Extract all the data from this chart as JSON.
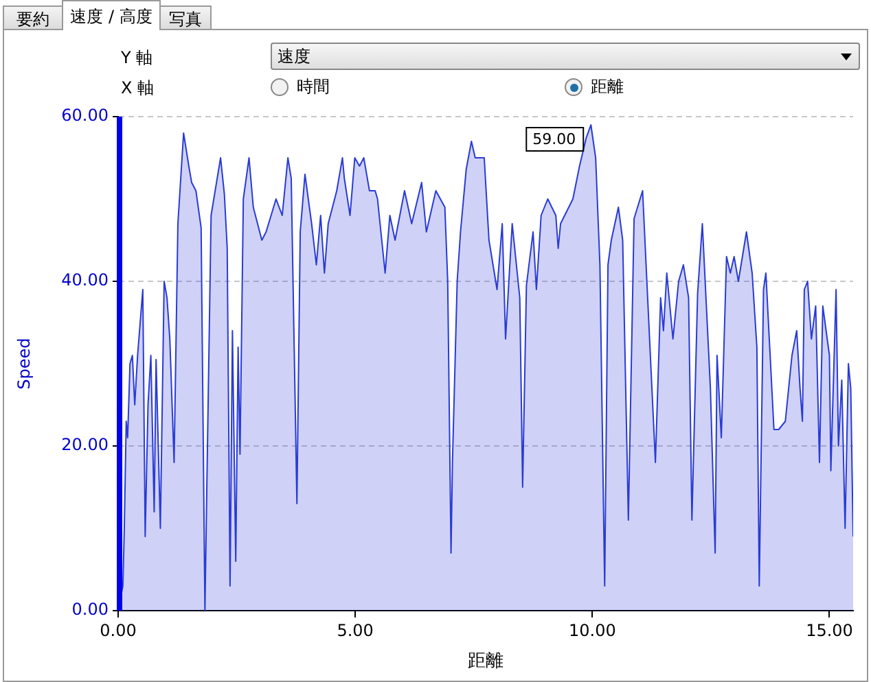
{
  "chart_data": {
    "type": "area",
    "xlabel": "距離",
    "ylabel": "Speed",
    "x": [
      0,
      0.1,
      0.13,
      0.17,
      0.2,
      0.25,
      0.3,
      0.35,
      0.41,
      0.52,
      0.57,
      0.63,
      0.69,
      0.76,
      0.8,
      0.89,
      0.97,
      1.03,
      1.09,
      1.18,
      1.26,
      1.38,
      1.49,
      1.55,
      1.64,
      1.75,
      1.83,
      1.9,
      1.96,
      2.16,
      2.24,
      2.3,
      2.36,
      2.41,
      2.48,
      2.53,
      2.57,
      2.64,
      2.76,
      2.85,
      3.03,
      3.12,
      3.33,
      3.46,
      3.58,
      3.65,
      3.77,
      3.84,
      3.94,
      4.08,
      4.18,
      4.27,
      4.35,
      4.43,
      4.61,
      4.73,
      4.77,
      4.89,
      4.99,
      5.09,
      5.18,
      5.3,
      5.42,
      5.47,
      5.63,
      5.73,
      5.84,
      6.04,
      6.19,
      6.4,
      6.5,
      6.7,
      6.89,
      6.95,
      7.02,
      7.05,
      7.15,
      7.22,
      7.34,
      7.45,
      7.53,
      7.72,
      7.82,
      7.99,
      8.1,
      8.17,
      8.31,
      8.47,
      8.53,
      8.61,
      8.75,
      8.82,
      8.92,
      9.06,
      9.23,
      9.28,
      9.33,
      9.59,
      9.73,
      9.87,
      9.97,
      10.07,
      10.16,
      10.26,
      10.33,
      10.4,
      10.55,
      10.64,
      10.76,
      10.88,
      11.06,
      11.33,
      11.44,
      11.5,
      11.57,
      11.7,
      11.82,
      11.92,
      12.03,
      12.1,
      12.22,
      12.32,
      12.49,
      12.59,
      12.63,
      12.72,
      12.83,
      12.91,
      12.99,
      13.08,
      13.25,
      13.37,
      13.47,
      13.52,
      13.61,
      13.66,
      13.83,
      13.93,
      14.07,
      14.21,
      14.31,
      14.38,
      14.43,
      14.47,
      14.54,
      14.62,
      14.71,
      14.79,
      14.86,
      15.0,
      15.03,
      15.14,
      15.19,
      15.26,
      15.33,
      15.4,
      15.45,
      15.5
    ],
    "series": [
      {
        "color": "#2a3bd6",
        "values": [
          0,
          3,
          10,
          23,
          21,
          30,
          31,
          25,
          31,
          39,
          9,
          25,
          31,
          12,
          30.5,
          10,
          40,
          38,
          33,
          18,
          47,
          58,
          54,
          52,
          51,
          46.5,
          0,
          26,
          48,
          55,
          50.6,
          44,
          3,
          34,
          6,
          32,
          19,
          50,
          55,
          49,
          45,
          46,
          50,
          48,
          55,
          52.5,
          13,
          46,
          53,
          47,
          42,
          48,
          41,
          47,
          51,
          55,
          52.5,
          48,
          55,
          54,
          55,
          51,
          51,
          50,
          41,
          48,
          45,
          51,
          47,
          52,
          46,
          51,
          49,
          40,
          7,
          18,
          40,
          46,
          53.6,
          57,
          55,
          55,
          45,
          39,
          47,
          33,
          47,
          38,
          15,
          39.5,
          46,
          39,
          48,
          50,
          48,
          44,
          47,
          50,
          54,
          57.4,
          59,
          55,
          42,
          3,
          42,
          45,
          49,
          45,
          11,
          47.6,
          51,
          18,
          38,
          34,
          41,
          33,
          40,
          42,
          38,
          11,
          38.5,
          47,
          27,
          7,
          31,
          21,
          43,
          41,
          43,
          40,
          46,
          41,
          32,
          3,
          39,
          41,
          22,
          22,
          23,
          31,
          34,
          27,
          23,
          39,
          40,
          33,
          37,
          18,
          37,
          31,
          17,
          39,
          20,
          28,
          10,
          30,
          27,
          9
        ]
      }
    ],
    "xlim": [
      0,
      15.5
    ],
    "xticks": [
      {
        "value": 0,
        "label": "0.00"
      },
      {
        "value": 5,
        "label": "5.00"
      },
      {
        "value": 10,
        "label": "10.00"
      },
      {
        "value": 15,
        "label": "15.00"
      }
    ],
    "ylim": [
      0,
      60
    ],
    "yticks": [
      {
        "value": 0,
        "label": "0.00"
      },
      {
        "value": 20,
        "label": "20.00"
      },
      {
        "value": 40,
        "label": "40.00"
      },
      {
        "value": 60,
        "label": "60.00"
      }
    ],
    "grid": "y",
    "legend": false,
    "marker": "none",
    "line_style": "solid",
    "ref_lines": [
      {
        "axis": "x",
        "value": 0,
        "color": "#0000ee"
      }
    ],
    "annotations": [
      "要約",
      "速度 / 高度",
      "写真",
      "Y 軸",
      "速度",
      "X 軸",
      "時間",
      "距離",
      {
        "text": "59.00",
        "x": 9.97,
        "y": 59
      }
    ]
  }
}
